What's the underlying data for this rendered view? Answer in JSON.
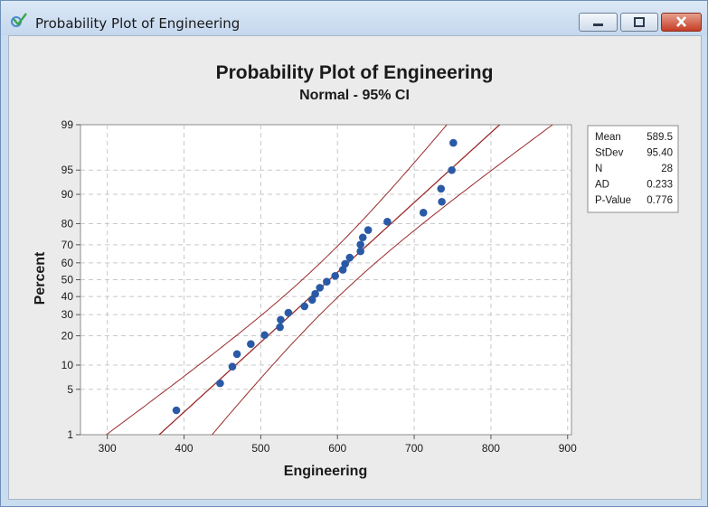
{
  "window": {
    "title": "Probability Plot of Engineering",
    "buttons": {
      "minimize": "minimize-icon",
      "maximize": "maximize-icon",
      "close": "close-icon"
    }
  },
  "stats": [
    {
      "label": "Mean",
      "value": "589.5"
    },
    {
      "label": "StDev",
      "value": "95.40"
    },
    {
      "label": "N",
      "value": "28"
    },
    {
      "label": "AD",
      "value": "0.233"
    },
    {
      "label": "P-Value",
      "value": "0.776"
    }
  ],
  "chart_data": {
    "type": "scatter",
    "title": "Probability Plot of Engineering",
    "subtitle": "Normal - 95% CI",
    "xlabel": "Engineering",
    "ylabel": "Percent",
    "x_scale": "linear",
    "y_scale": "normal-probability",
    "xlim": [
      265,
      905
    ],
    "ylim": [
      1,
      99
    ],
    "x_ticks": [
      300,
      400,
      500,
      600,
      700,
      800,
      900
    ],
    "y_ticks": [
      1,
      5,
      10,
      20,
      30,
      40,
      50,
      60,
      70,
      80,
      90,
      95,
      99
    ],
    "grid": true,
    "fit_line": {
      "mean": 589.5,
      "stdev": 95.4
    },
    "confidence_interval": 0.95,
    "n": 28,
    "points": [
      {
        "x": 390,
        "y": 2.5
      },
      {
        "x": 447,
        "y": 6.0
      },
      {
        "x": 463,
        "y": 9.6
      },
      {
        "x": 469,
        "y": 13.2
      },
      {
        "x": 487,
        "y": 16.7
      },
      {
        "x": 505,
        "y": 20.3
      },
      {
        "x": 525,
        "y": 23.8
      },
      {
        "x": 526,
        "y": 27.4
      },
      {
        "x": 536,
        "y": 31.0
      },
      {
        "x": 557,
        "y": 34.5
      },
      {
        "x": 567,
        "y": 38.1
      },
      {
        "x": 571,
        "y": 41.6
      },
      {
        "x": 577,
        "y": 45.2
      },
      {
        "x": 586,
        "y": 48.8
      },
      {
        "x": 597,
        "y": 52.3
      },
      {
        "x": 607,
        "y": 55.9
      },
      {
        "x": 610,
        "y": 59.4
      },
      {
        "x": 616,
        "y": 63.0
      },
      {
        "x": 630,
        "y": 66.5
      },
      {
        "x": 630,
        "y": 70.1
      },
      {
        "x": 633,
        "y": 73.7
      },
      {
        "x": 640,
        "y": 77.2
      },
      {
        "x": 665,
        "y": 80.8
      },
      {
        "x": 712,
        "y": 84.3
      },
      {
        "x": 736,
        "y": 87.9
      },
      {
        "x": 735,
        "y": 91.4
      },
      {
        "x": 749,
        "y": 95.0
      },
      {
        "x": 751,
        "y": 98.0
      }
    ],
    "colors": {
      "points": "#2a5aa6",
      "lines": "#9b2a2a",
      "grid": "#c8c8c8",
      "background": "#ffffff",
      "panel": "#ebebeb"
    }
  }
}
